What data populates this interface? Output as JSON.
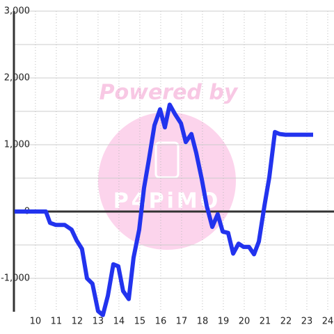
{
  "chart_data": {
    "type": "line",
    "watermark": [
      "Powered by",
      "P4PiMO"
    ],
    "x": [
      9.0,
      10.5,
      10.7,
      10.97,
      11.4,
      11.73,
      11.97,
      12.23,
      12.47,
      12.73,
      13.0,
      13.23,
      13.47,
      13.73,
      13.97,
      14.2,
      14.47,
      14.7,
      14.97,
      15.2,
      15.43,
      15.7,
      15.97,
      16.2,
      16.43,
      16.7,
      16.97,
      17.2,
      17.47,
      17.7,
      17.97,
      18.2,
      18.47,
      18.73,
      18.97,
      19.23,
      19.47,
      19.73,
      19.97,
      20.23,
      20.47,
      20.7,
      20.97,
      21.2,
      21.47,
      21.7,
      21.97,
      23.3
    ],
    "series": [
      {
        "color": "#2233ee",
        "values": [
          0,
          0,
          -170,
          -200,
          -200,
          -270,
          -430,
          -560,
          -1000,
          -1080,
          -1490,
          -1550,
          -1260,
          -790,
          -820,
          -1190,
          -1310,
          -690,
          -270,
          350,
          770,
          1290,
          1530,
          1260,
          1600,
          1450,
          1320,
          1040,
          1160,
          880,
          480,
          90,
          -230,
          -40,
          -300,
          -320,
          -630,
          -480,
          -530,
          -530,
          -640,
          -450,
          90,
          510,
          1190,
          1160,
          1150,
          1150
        ]
      }
    ],
    "xlim": [
      8.97,
      24.3
    ],
    "xticks": [
      10,
      11,
      12,
      13,
      14,
      15,
      16,
      17,
      18,
      19,
      20,
      21,
      22,
      23,
      24
    ],
    "ylim": [
      -1500,
      3000
    ],
    "yticks": [
      {
        "value": -1000,
        "label": "-1,000"
      },
      0,
      {
        "value": 1000,
        "label": "1,000"
      },
      {
        "value": 2000,
        "label": "2,000"
      },
      {
        "value": 3000,
        "label": "3,000"
      }
    ],
    "y_minor_ticks": [
      -500,
      500,
      1500,
      2500
    ],
    "grid": true
  }
}
